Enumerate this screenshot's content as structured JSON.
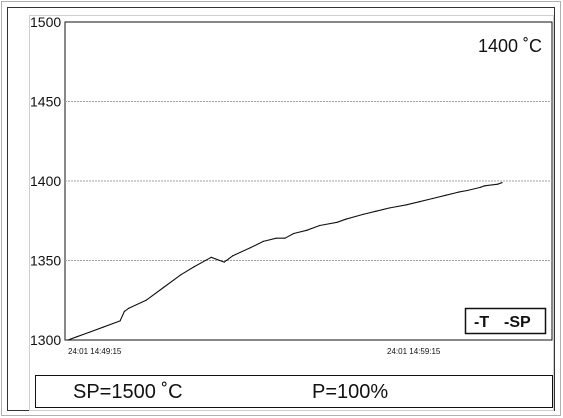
{
  "chart_data": {
    "type": "line",
    "x_tick_labels": [
      "24:01 14:49:15",
      "24:01 14:59:15"
    ],
    "y_ticks": [
      1300,
      1350,
      1400,
      1450,
      1500
    ],
    "ylim": [
      1300,
      1500
    ],
    "grid": true,
    "current_value_label": "1400 ˚C",
    "legend": [
      "-T",
      "-SP"
    ],
    "legend_position": "bottom-right",
    "series": [
      {
        "x": [
          0,
          0.02,
          0.05,
          0.08,
          0.12,
          0.13,
          0.14,
          0.18,
          0.22,
          0.26,
          0.29,
          0.33,
          0.36,
          0.37,
          0.38,
          0.42,
          0.45,
          0.48,
          0.5,
          0.52,
          0.55,
          0.58,
          0.62,
          0.64,
          0.68,
          0.71,
          0.74,
          0.78,
          0.81,
          0.84,
          0.87,
          0.9,
          0.92,
          0.95,
          0.96,
          0.99,
          1.0
        ],
        "values": [
          1300,
          1302,
          1305,
          1308,
          1312,
          1318,
          1320,
          1325,
          1333,
          1341,
          1346,
          1352,
          1349,
          1351,
          1353,
          1358,
          1362,
          1364,
          1364,
          1367,
          1369,
          1372,
          1374,
          1376,
          1379,
          1381,
          1383,
          1385,
          1387,
          1389,
          1391,
          1393,
          1394,
          1396,
          1397,
          1398,
          1399
        ]
      }
    ]
  },
  "status": {
    "setpoint": "SP=1500 ˚C",
    "power": "P=100%"
  }
}
